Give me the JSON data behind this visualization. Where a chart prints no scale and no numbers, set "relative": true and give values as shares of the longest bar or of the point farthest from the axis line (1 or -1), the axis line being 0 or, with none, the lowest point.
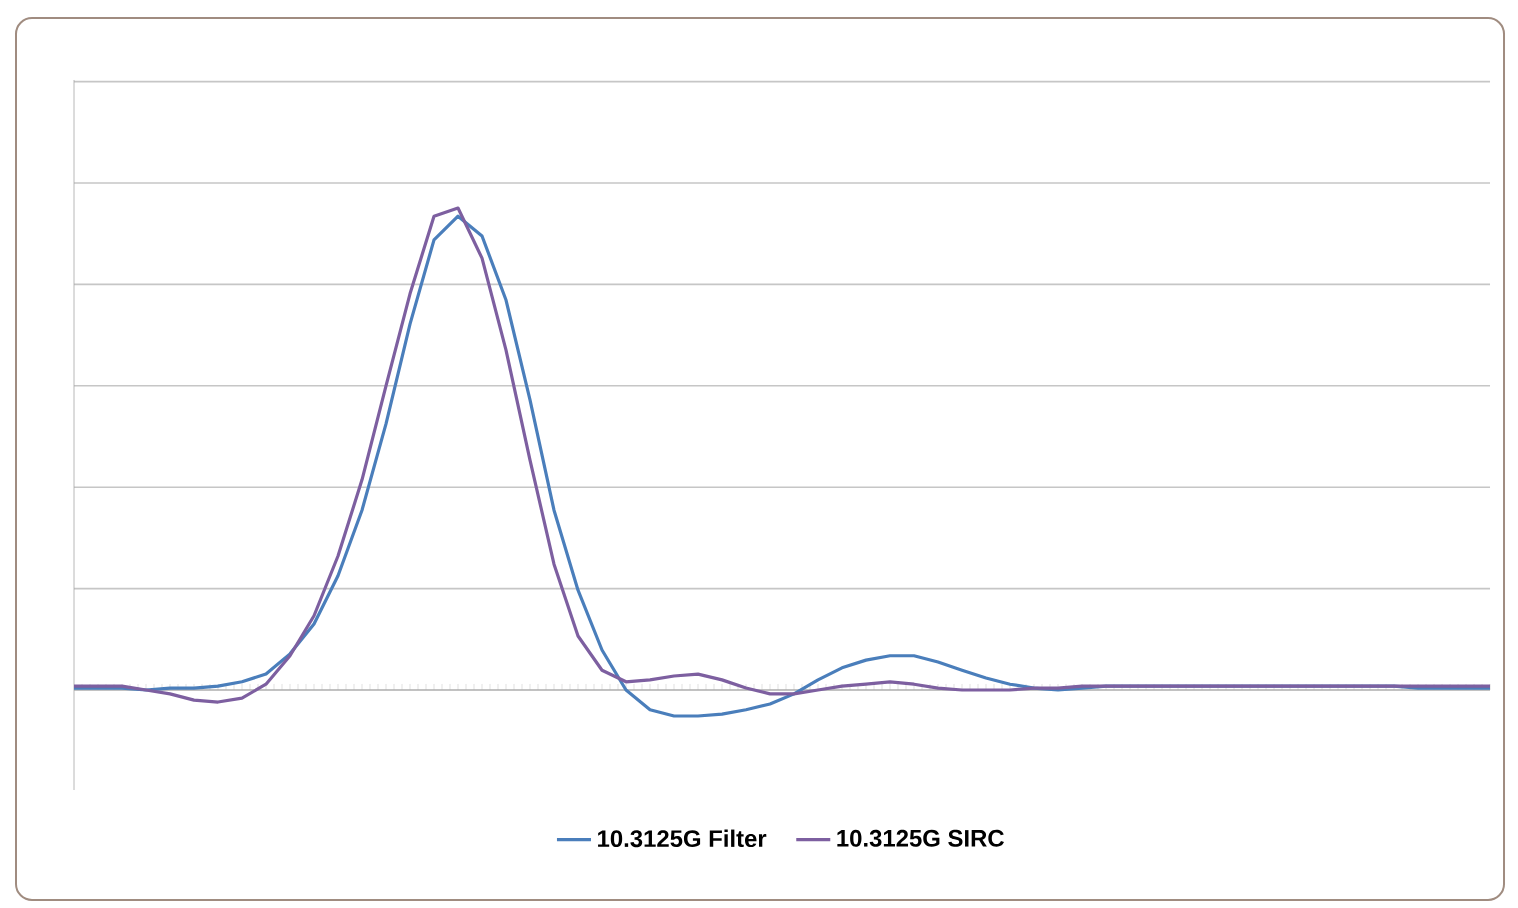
{
  "chart_data": {
    "type": "line",
    "relative": true,
    "grid": "y",
    "legend": "bottom",
    "marker": "none",
    "line_style": "solid",
    "categories": [
      null,
      null,
      null,
      null,
      null,
      null,
      null,
      null,
      null,
      null,
      null,
      null,
      null,
      null,
      null,
      null,
      null,
      null,
      null,
      null,
      null,
      null,
      null,
      null,
      null,
      null,
      null,
      null,
      null,
      null,
      null,
      null,
      null,
      null,
      null,
      null,
      null,
      null,
      null,
      null,
      null,
      null,
      null,
      null,
      null,
      null,
      null,
      null,
      null,
      null,
      null,
      null,
      null,
      null,
      null,
      null,
      null,
      null,
      null,
      null
    ],
    "series": [
      {
        "name": "10.3125G Filter",
        "color": "#4a7ebb",
        "values": [
          0.004,
          0.004,
          0.004,
          0,
          0.004,
          0.004,
          0.008,
          0.017,
          0.033,
          0.075,
          0.137,
          0.237,
          0.373,
          0.552,
          0.759,
          0.934,
          0.983,
          0.942,
          0.809,
          0.602,
          0.373,
          0.207,
          0.083,
          0,
          -0.041,
          -0.054,
          -0.054,
          -0.05,
          -0.041,
          -0.029,
          -0.008,
          0.021,
          0.046,
          0.062,
          0.071,
          0.071,
          0.058,
          0.041,
          0.025,
          0.012,
          0.004,
          0,
          0.004,
          0.008,
          0.008,
          0.008,
          0.008,
          0.008,
          0.008,
          0.008,
          0.008,
          0.008,
          0.008,
          0.008,
          0.008,
          0.008,
          0.004,
          0.004,
          0.004,
          0.004
        ]
      },
      {
        "name": "10.3125G SIRC",
        "color": "#7d5fa0",
        "values": [
          0.008,
          0.008,
          0.008,
          0,
          -0.008,
          -0.021,
          -0.025,
          -0.017,
          0.012,
          0.071,
          0.154,
          0.278,
          0.436,
          0.631,
          0.822,
          0.983,
          1.0,
          0.896,
          0.705,
          0.477,
          0.261,
          0.112,
          0.041,
          0.017,
          0.021,
          0.029,
          0.033,
          0.021,
          0.004,
          -0.008,
          -0.008,
          0,
          0.008,
          0.012,
          0.017,
          0.012,
          0.004,
          0,
          0,
          0,
          0.004,
          0.004,
          0.008,
          0.008,
          0.008,
          0.008,
          0.008,
          0.008,
          0.008,
          0.008,
          0.008,
          0.008,
          0.008,
          0.008,
          0.008,
          0.008,
          0.008,
          0.008,
          0.008,
          0.008
        ]
      }
    ]
  }
}
